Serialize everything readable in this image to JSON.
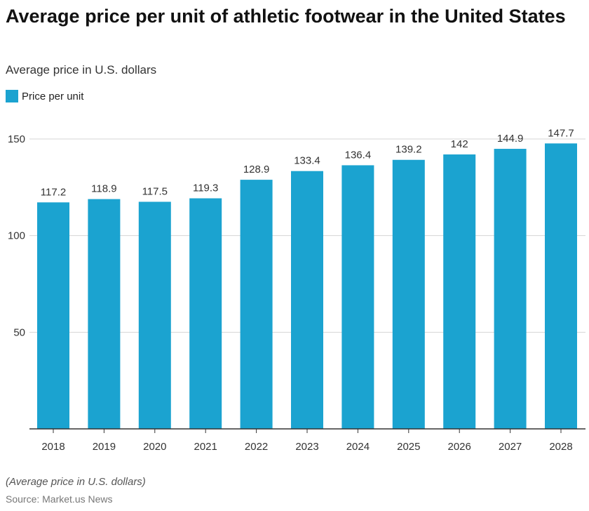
{
  "chart_data": {
    "type": "bar",
    "title": "Average price per unit of athletic footwear in the United States",
    "subtitle": "Average price in U.S. dollars",
    "categories": [
      "2018",
      "2019",
      "2020",
      "2021",
      "2022",
      "2023",
      "2024",
      "2025",
      "2026",
      "2027",
      "2028"
    ],
    "series": [
      {
        "name": "Price per unit",
        "values": [
          117.2,
          118.9,
          117.5,
          119.3,
          128.9,
          133.4,
          136.4,
          139.2,
          142,
          144.9,
          147.7
        ],
        "color": "#1ba3d0"
      }
    ],
    "data_labels": [
      "117.2",
      "118.9",
      "117.5",
      "119.3",
      "128.9",
      "133.4",
      "136.4",
      "139.2",
      "142",
      "144.9",
      "147.7"
    ],
    "yticks": [
      50,
      100,
      150
    ],
    "ylim": [
      0,
      150
    ],
    "grid": true,
    "legend": "top-left",
    "note": "(Average price in U.S. dollars)",
    "source": "Source: Market.us News"
  }
}
